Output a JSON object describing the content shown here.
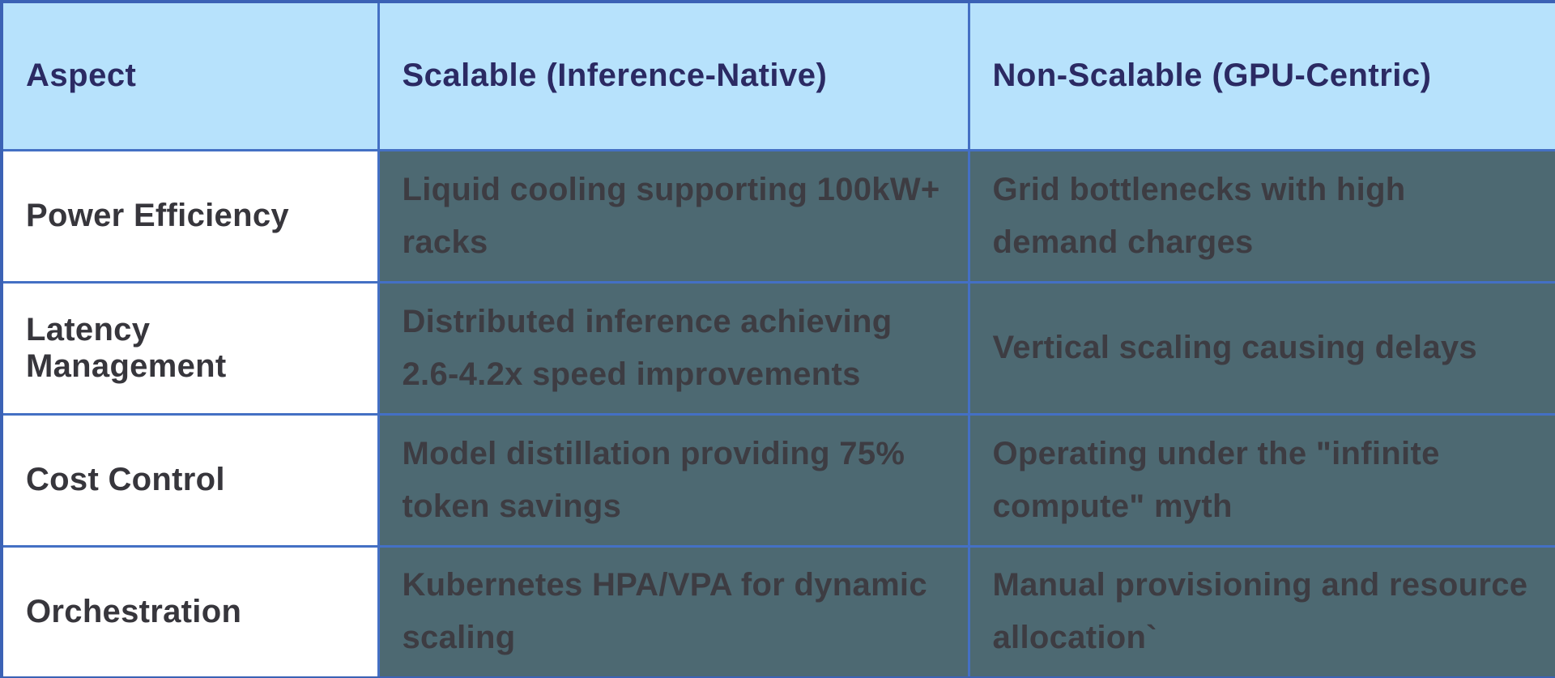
{
  "table": {
    "columns": [
      {
        "label": "Aspect"
      },
      {
        "label": "Scalable (Inference-Native)"
      },
      {
        "label": "Non-Scalable (GPU-Centric)"
      }
    ],
    "rows": [
      {
        "aspect": "Power Efficiency",
        "scalable": "Liquid cooling supporting 100kW+ racks",
        "non_scalable": "Grid bottlenecks with high demand charges"
      },
      {
        "aspect": "Latency Management",
        "scalable": "Distributed inference achieving 2.6-4.2x speed improvements",
        "non_scalable": "Vertical scaling causing delays"
      },
      {
        "aspect": "Cost Control",
        "scalable": "Model distillation providing 75% token savings",
        "non_scalable": "Operating under the \"infinite compute\" myth"
      },
      {
        "aspect": "Orchestration",
        "scalable": "Kubernetes HPA/VPA for dynamic scaling",
        "non_scalable": "Manual provisioning and resource allocation`"
      }
    ],
    "colors": {
      "header_bg": "#b7e2fc",
      "header_text": "#2b2a63",
      "body_cell_bg": "#4d6972",
      "body_cell_text": "#3d3c42",
      "aspect_cell_bg": "#ffffff",
      "aspect_cell_text": "#37363c",
      "border": "#4470c4"
    }
  }
}
